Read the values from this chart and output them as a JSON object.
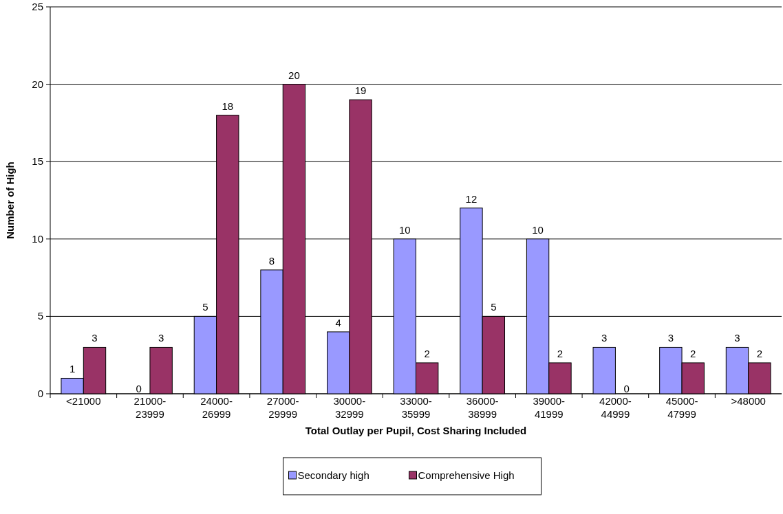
{
  "chart_data": {
    "type": "bar",
    "xlabel": "Total Outlay per Pupil, Cost Sharing Included",
    "ylabel": "Number of High",
    "categories": [
      "<21000",
      "21000-23999",
      "24000-26999",
      "27000-29999",
      "30000-32999",
      "33000-35999",
      "36000-38999",
      "39000-41999",
      "42000-44999",
      "45000-47999",
      ">48000"
    ],
    "series": [
      {
        "name": "Secondary high",
        "color": "#9999ff",
        "values": [
          1,
          0,
          5,
          8,
          4,
          10,
          12,
          10,
          3,
          3,
          3
        ]
      },
      {
        "name": "Comprehensive High",
        "color": "#993366",
        "values": [
          3,
          3,
          18,
          20,
          19,
          2,
          5,
          2,
          0,
          2,
          2
        ]
      }
    ],
    "ylim": [
      0,
      25
    ],
    "yticks": [
      0,
      5,
      10,
      15,
      20,
      25
    ],
    "grid": "y",
    "legend": "bottom",
    "data_labels": true
  }
}
